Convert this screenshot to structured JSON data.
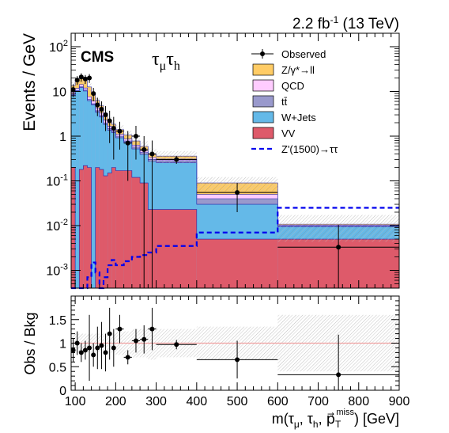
{
  "header": {
    "lumi": "2.2 fb",
    "lumi_exp": "-1",
    "energy": " (13 TeV)"
  },
  "labels": {
    "experiment": "CMS",
    "channel_main": "τ",
    "channel_sub1": "μ",
    "channel_mid": "τ",
    "channel_sub2": "h"
  },
  "colors": {
    "ztt": "#ffcc66",
    "qcd": "#ffccff",
    "ttbar": "#9999cc",
    "wjets": "#64b9e8",
    "vv": "#de5a6a",
    "outline": "#2222aa",
    "signal": "#0000ee",
    "ratio_line": "#f0a0a0",
    "uncertainty": "#999999"
  },
  "chart_data": [
    {
      "type": "bar",
      "stacked": true,
      "log_y": true,
      "xlabel": "m(τμ, τh, p⃗T miss) [GeV]",
      "ylabel": "Events / GeV",
      "xlim": [
        90,
        900
      ],
      "ylim": [
        0.0004,
        200
      ],
      "y_ticks": [
        {
          "value": 0.001,
          "base": "10",
          "exp": "-3"
        },
        {
          "value": 0.01,
          "base": "10",
          "exp": "-2"
        },
        {
          "value": 0.1,
          "base": "10",
          "exp": "-1"
        },
        {
          "value": 1,
          "base": "1",
          "exp": ""
        },
        {
          "value": 10,
          "base": "10",
          "exp": ""
        },
        {
          "value": 100,
          "base": "10",
          "exp": "2"
        }
      ],
      "bin_edges": [
        90,
        100,
        110,
        120,
        130,
        140,
        150,
        160,
        170,
        180,
        190,
        200,
        220,
        240,
        260,
        280,
        300,
        400,
        600,
        900
      ],
      "series": [
        {
          "name": "VV",
          "key": "vv",
          "values": [
            0.2,
            0.0004,
            0.18,
            0.22,
            0.2,
            0.0004,
            0.2,
            0.18,
            0.13,
            0.15,
            0.2,
            0.17,
            0.17,
            0.12,
            0.09,
            0.023,
            0.023,
            0.005,
            0.005
          ]
        },
        {
          "name": "W+Jets",
          "key": "wjets",
          "values": [
            8,
            10,
            12,
            10,
            6,
            5,
            3.2,
            2.5,
            1.7,
            1.2,
            1.0,
            0.75,
            0.55,
            0.4,
            0.3,
            0.25,
            0.23,
            0.025,
            0.0045
          ]
        },
        {
          "name": "tt̄",
          "key": "ttbar",
          "values": [
            0.4,
            0.5,
            0.6,
            0.5,
            0.4,
            0.3,
            0.3,
            0.2,
            0.15,
            0.12,
            0.1,
            0.08,
            0.06,
            0.05,
            0.04,
            0.03,
            0.03,
            0.01,
            0.0003
          ]
        },
        {
          "name": "QCD",
          "key": "qcd",
          "values": [
            1.0,
            1.2,
            1.5,
            1.2,
            1.0,
            0.8,
            0.6,
            0.4,
            0.3,
            0.2,
            0.15,
            0.1,
            0.08,
            0.06,
            0.04,
            0.03,
            0.025,
            0.01,
            0.0005
          ]
        },
        {
          "name": "Z/γ*→ll",
          "key": "ztt",
          "values": [
            4,
            6,
            5,
            6,
            5,
            3,
            2,
            1.5,
            1.0,
            0.6,
            0.4,
            0.3,
            0.2,
            0.15,
            0.12,
            0.06,
            0.05,
            0.04,
            0.0005
          ]
        }
      ],
      "signal": {
        "name": "Z'(1500)→ττ",
        "values": [
          0.0004,
          0.0004,
          0.0004,
          0.0004,
          0.0007,
          0.0015,
          0.0009,
          0.0004,
          0.0007,
          0.0013,
          0.0017,
          0.0013,
          0.0016,
          0.002,
          0.0022,
          0.0025,
          0.0035,
          0.007,
          0.025
        ]
      },
      "observed": {
        "name": "Observed",
        "points": [
          {
            "x": 95,
            "y": 11,
            "err": 3.5
          },
          {
            "x": 105,
            "y": 18,
            "err": 4
          },
          {
            "x": 115,
            "y": 21,
            "err": 4.5
          },
          {
            "x": 125,
            "y": 19,
            "err": 4.3
          },
          {
            "x": 135,
            "y": 20,
            "err": 4.5
          },
          {
            "x": 145,
            "y": 9,
            "err": 3
          },
          {
            "x": 155,
            "y": 5,
            "err": 2.2
          },
          {
            "x": 165,
            "y": 4,
            "err": 2
          },
          {
            "x": 175,
            "y": 3,
            "err": 1.7
          },
          {
            "x": 185,
            "y": 2.2,
            "err": 1.5
          },
          {
            "x": 195,
            "y": 1.5,
            "err": 1.2
          },
          {
            "x": 210,
            "y": 1.3,
            "err": 0.8
          },
          {
            "x": 230,
            "y": 0.7,
            "err": 0.6
          },
          {
            "x": 250,
            "y": 1.0,
            "err": 0.7
          },
          {
            "x": 270,
            "y": 0.5,
            "err": 0.5
          },
          {
            "x": 290,
            "y": 0.4,
            "err": 0.4
          },
          {
            "x": 350,
            "y": 0.3,
            "err": 0.06
          },
          {
            "x": 500,
            "y": 0.055,
            "err": 0.035
          },
          {
            "x": 750,
            "y": 0.0033,
            "err": 0.007
          }
        ]
      },
      "legend_position": "top-right"
    },
    {
      "type": "scatter",
      "ylabel": "Obs / Bkg",
      "xlim": [
        90,
        900
      ],
      "ylim": [
        0,
        2
      ],
      "x_ticks": [
        100,
        200,
        300,
        400,
        500,
        600,
        700,
        800,
        900
      ],
      "y_ticks": [
        0,
        0.5,
        1,
        1.5
      ],
      "reference_line": 1,
      "uncertainty_halfwidth": [
        0.2,
        0.2,
        0.2,
        0.2,
        0.2,
        0.2,
        0.2,
        0.2,
        0.2,
        0.2,
        0.2,
        0.25,
        0.25,
        0.3,
        0.3,
        0.35,
        0.3,
        0.35,
        0.6
      ],
      "points": [
        {
          "x": 95,
          "y": 0.85,
          "xerr": 5,
          "yerr": 0.25
        },
        {
          "x": 105,
          "y": 1.0,
          "xerr": 5,
          "yerr": 0.25
        },
        {
          "x": 115,
          "y": 0.8,
          "xerr": 5,
          "yerr": 0.2
        },
        {
          "x": 125,
          "y": 0.85,
          "xerr": 5,
          "yerr": 0.2
        },
        {
          "x": 135,
          "y": 0.9,
          "xerr": 5,
          "yerr": 0.7
        },
        {
          "x": 145,
          "y": 0.75,
          "xerr": 5,
          "yerr": 0.25
        },
        {
          "x": 155,
          "y": 0.9,
          "xerr": 5,
          "yerr": 0.45
        },
        {
          "x": 165,
          "y": 0.95,
          "xerr": 5,
          "yerr": 0.5
        },
        {
          "x": 175,
          "y": 0.8,
          "xerr": 5,
          "yerr": 0.4
        },
        {
          "x": 185,
          "y": 1.2,
          "xerr": 5,
          "yerr": 0.55
        },
        {
          "x": 195,
          "y": 0.9,
          "xerr": 5,
          "yerr": 0.4
        },
        {
          "x": 210,
          "y": 1.3,
          "xerr": 10,
          "yerr": 0.3
        },
        {
          "x": 230,
          "y": 0.7,
          "xerr": 10,
          "yerr": 0.15
        },
        {
          "x": 250,
          "y": 1.05,
          "xerr": 10,
          "yerr": 0.25
        },
        {
          "x": 270,
          "y": 1.08,
          "xerr": 10,
          "yerr": 0.3
        },
        {
          "x": 290,
          "y": 1.3,
          "xerr": 10,
          "yerr": 0.45
        },
        {
          "x": 350,
          "y": 0.97,
          "xerr": 50,
          "yerr": 0.1
        },
        {
          "x": 500,
          "y": 0.65,
          "xerr": 100,
          "yerr": 0.4
        },
        {
          "x": 750,
          "y": 0.33,
          "xerr": 150,
          "yerr": 0.85
        }
      ]
    }
  ]
}
